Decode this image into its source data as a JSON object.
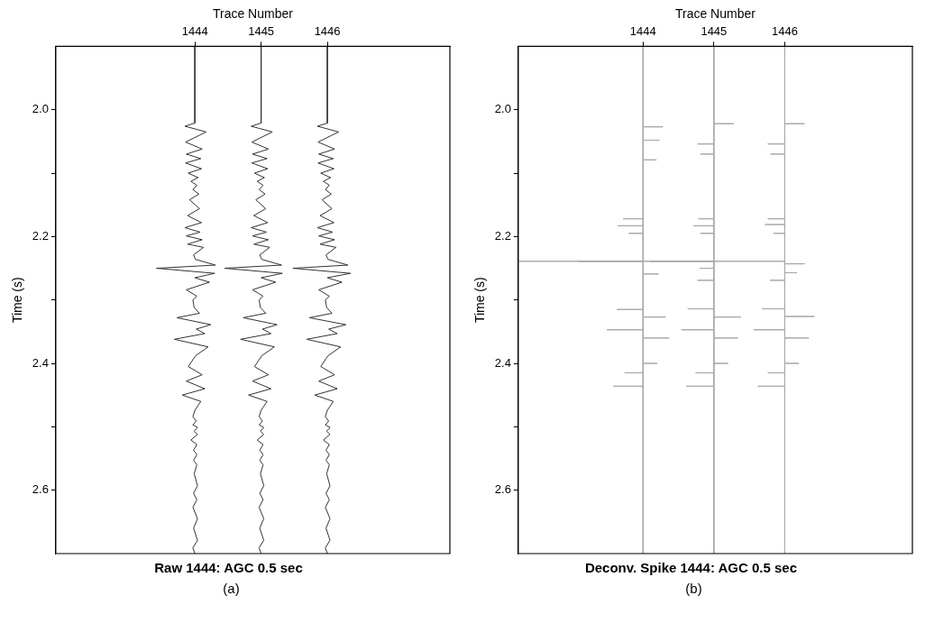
{
  "chart_data": [
    {
      "type": "line",
      "title": "Raw 1444: AGC 0.5 sec",
      "xlabel": "Trace Number",
      "ylabel": "Time (s)",
      "annotations": [
        "(a)"
      ],
      "xlim": [
        1441.9,
        1447.85
      ],
      "xticks": [
        1444,
        1445,
        1446
      ],
      "ylim": [
        2.7,
        1.9
      ],
      "yticks": [
        {
          "value": 2,
          "label": "2.0"
        },
        {
          "value": 2.1,
          "label": null
        },
        2.2,
        {
          "value": 2.3,
          "label": null
        },
        2.4,
        {
          "value": 2.5,
          "label": null
        },
        2.6
      ],
      "series": [
        {
          "color": "#333333",
          "x": [
            1444,
            1444,
            1443.85,
            1444.17,
            1443.86,
            1444.11,
            1443.87,
            1444.09,
            1443.86,
            1444.1,
            1443.9,
            1444.05,
            1443.94,
            1444.03,
            1443.97,
            1444.06,
            1443.92,
            1444.07,
            1443.89,
            1444.1,
            1443.85,
            1444.08,
            1443.87,
            1444.11,
            1443.89,
            1444.13,
            1443.98,
            1444.01,
            1444.31,
            1443.42,
            1444.3,
            1444,
            1444.22,
            1443.87,
            1444.03,
            1443.97,
            1443.99,
            1444.07,
            1443.73,
            1444.24,
            1444.02,
            1444.15,
            1443.69,
            1444.2,
            1444.01,
            1443.9,
            1444.11,
            1443.87,
            1444.15,
            1443.81,
            1444.09,
            1444,
            1443.97,
            1444.02,
            1443.97,
            1444.04,
            1443.99,
            1444.04,
            1443.94,
            1444.03,
            1443.98,
            1444.03,
            1443.98,
            1444.03,
            1443.99,
            1444.04,
            1443.98,
            1444.03,
            1443.97,
            1444.04,
            1443.98,
            1444.04,
            1443.97,
            1444
          ],
          "values": [
            1.9,
            2.021,
            2.026,
            2.035,
            2.051,
            2.062,
            2.07,
            2.077,
            2.084,
            2.093,
            2.1,
            2.107,
            2.113,
            2.119,
            2.126,
            2.133,
            2.142,
            2.156,
            2.167,
            2.178,
            2.186,
            2.193,
            2.199,
            2.205,
            2.212,
            2.217,
            2.229,
            2.236,
            2.245,
            2.25,
            2.258,
            2.265,
            2.272,
            2.284,
            2.294,
            2.3,
            2.312,
            2.321,
            2.328,
            2.339,
            2.346,
            2.353,
            2.362,
            2.374,
            2.388,
            2.405,
            2.418,
            2.428,
            2.44,
            2.45,
            2.46,
            2.474,
            2.484,
            2.491,
            2.497,
            2.501,
            2.507,
            2.512,
            2.521,
            2.528,
            2.537,
            2.544,
            2.553,
            2.56,
            2.574,
            2.593,
            2.605,
            2.615,
            2.627,
            2.645,
            2.66,
            2.679,
            2.691,
            2.7
          ]
        },
        {
          "color": "#333333",
          "x": [
            1445,
            1445,
            1444.85,
            1445.17,
            1444.86,
            1445.11,
            1444.87,
            1445.09,
            1444.86,
            1445.1,
            1444.9,
            1445.05,
            1444.94,
            1445.03,
            1444.97,
            1445.06,
            1444.92,
            1445.07,
            1444.89,
            1445.1,
            1444.85,
            1445.08,
            1444.87,
            1445.11,
            1444.89,
            1445.13,
            1444.98,
            1445.01,
            1445.31,
            1444.45,
            1445.32,
            1445,
            1445.22,
            1444.87,
            1445.03,
            1444.97,
            1444.99,
            1445.07,
            1444.73,
            1445.24,
            1445.02,
            1445.15,
            1444.69,
            1445.2,
            1445.01,
            1444.9,
            1445.11,
            1444.87,
            1445.15,
            1444.81,
            1445.09,
            1445,
            1444.97,
            1445.02,
            1444.97,
            1445.04,
            1444.99,
            1445.04,
            1444.94,
            1445.03,
            1444.98,
            1445.03,
            1444.98,
            1445.03,
            1444.99,
            1445.04,
            1444.98,
            1445.03,
            1444.97,
            1445.04,
            1444.98,
            1445.04,
            1444.97,
            1445
          ],
          "values": [
            1.9,
            2.021,
            2.026,
            2.035,
            2.051,
            2.062,
            2.07,
            2.077,
            2.084,
            2.093,
            2.1,
            2.107,
            2.113,
            2.119,
            2.126,
            2.133,
            2.142,
            2.156,
            2.167,
            2.178,
            2.186,
            2.193,
            2.199,
            2.205,
            2.212,
            2.217,
            2.229,
            2.236,
            2.245,
            2.25,
            2.258,
            2.265,
            2.272,
            2.284,
            2.294,
            2.3,
            2.312,
            2.321,
            2.328,
            2.339,
            2.346,
            2.353,
            2.362,
            2.374,
            2.388,
            2.405,
            2.418,
            2.428,
            2.44,
            2.45,
            2.46,
            2.474,
            2.484,
            2.491,
            2.497,
            2.501,
            2.507,
            2.512,
            2.521,
            2.528,
            2.537,
            2.544,
            2.553,
            2.56,
            2.574,
            2.593,
            2.605,
            2.615,
            2.627,
            2.645,
            2.66,
            2.679,
            2.691,
            2.7
          ]
        },
        {
          "color": "#333333",
          "x": [
            1446,
            1446,
            1445.85,
            1446.17,
            1445.86,
            1446.11,
            1445.87,
            1446.09,
            1445.86,
            1446.1,
            1445.9,
            1446.05,
            1445.94,
            1446.03,
            1445.97,
            1446.06,
            1445.92,
            1446.07,
            1445.89,
            1446.1,
            1445.85,
            1446.08,
            1445.87,
            1446.11,
            1445.89,
            1446.13,
            1445.98,
            1446.01,
            1446.31,
            1445.48,
            1446.35,
            1446,
            1446.22,
            1445.87,
            1446.03,
            1445.97,
            1445.99,
            1446.07,
            1445.73,
            1446.28,
            1446.02,
            1446.15,
            1445.69,
            1446.2,
            1446.01,
            1445.9,
            1446.11,
            1445.87,
            1446.15,
            1445.81,
            1446.09,
            1446,
            1445.97,
            1446.02,
            1445.97,
            1446.04,
            1445.99,
            1446.04,
            1445.94,
            1446.03,
            1445.98,
            1446.03,
            1445.98,
            1446.03,
            1445.99,
            1446.04,
            1445.98,
            1446.03,
            1445.97,
            1446.04,
            1445.98,
            1446.04,
            1445.97,
            1446
          ],
          "values": [
            1.9,
            2.021,
            2.026,
            2.035,
            2.051,
            2.062,
            2.07,
            2.077,
            2.084,
            2.093,
            2.1,
            2.107,
            2.113,
            2.119,
            2.126,
            2.133,
            2.142,
            2.156,
            2.167,
            2.178,
            2.186,
            2.193,
            2.199,
            2.205,
            2.212,
            2.217,
            2.229,
            2.236,
            2.245,
            2.25,
            2.258,
            2.265,
            2.272,
            2.284,
            2.294,
            2.3,
            2.312,
            2.321,
            2.328,
            2.339,
            2.346,
            2.353,
            2.362,
            2.374,
            2.388,
            2.405,
            2.418,
            2.428,
            2.44,
            2.45,
            2.46,
            2.474,
            2.484,
            2.491,
            2.497,
            2.501,
            2.507,
            2.512,
            2.521,
            2.528,
            2.537,
            2.544,
            2.553,
            2.56,
            2.574,
            2.593,
            2.605,
            2.615,
            2.627,
            2.645,
            2.66,
            2.679,
            2.691,
            2.7
          ]
        }
      ]
    },
    {
      "type": "line",
      "title": "Deconv. Spike 1444: AGC 0.5 sec",
      "xlabel": "Trace Number",
      "ylabel": "Time (s)",
      "annotations": [
        "(b)"
      ],
      "xlim": [
        1442.24,
        1447.8
      ],
      "xticks": [
        1444,
        1445,
        1446
      ],
      "ylim": [
        2.7,
        1.9
      ],
      "yticks": [
        {
          "value": 2,
          "label": "2.0"
        },
        {
          "value": 2.1,
          "label": null
        },
        2.2,
        {
          "value": 2.3,
          "label": null
        },
        2.4,
        {
          "value": 2.5,
          "label": null
        },
        2.6
      ],
      "series": [
        {
          "color": "#a6a6a6",
          "x": [
            1444,
            1444,
            1444.28,
            1444,
            1444,
            1444.23,
            1444,
            1444,
            1444.19,
            1444,
            1444,
            1443.72,
            1444,
            1444,
            1443.64,
            1444,
            1444,
            1443.8,
            1444,
            1444,
            1442.25,
            1444,
            1444,
            1444.22,
            1444,
            1444,
            1443.63,
            1444,
            1444,
            1444.32,
            1444,
            1444,
            1443.49,
            1444,
            1444,
            1444.37,
            1444,
            1444,
            1444.2,
            1444,
            1444,
            1443.74,
            1444,
            1444,
            1443.58,
            1444,
            1444
          ],
          "values": [
            1.9,
            2.027,
            2.027,
            2.027,
            2.048,
            2.048,
            2.048,
            2.079,
            2.079,
            2.079,
            2.172,
            2.172,
            2.172,
            2.183,
            2.183,
            2.183,
            2.195,
            2.195,
            2.195,
            2.239,
            2.239,
            2.239,
            2.259,
            2.259,
            2.259,
            2.315,
            2.315,
            2.315,
            2.327,
            2.327,
            2.327,
            2.347,
            2.347,
            2.347,
            2.36,
            2.36,
            2.36,
            2.4,
            2.4,
            2.4,
            2.415,
            2.415,
            2.415,
            2.436,
            2.436,
            2.436,
            2.7
          ]
        },
        {
          "color": "#a6a6a6",
          "x": [
            1445,
            1445,
            1445.28,
            1445,
            1445,
            1444.77,
            1445,
            1445,
            1444.81,
            1445,
            1445,
            1444.78,
            1445,
            1445,
            1444.71,
            1445,
            1445,
            1444.81,
            1445,
            1445,
            1443.1,
            1445,
            1445,
            1444.8,
            1445,
            1445,
            1444.77,
            1445,
            1445,
            1444.63,
            1445,
            1445,
            1445.38,
            1445,
            1445,
            1444.54,
            1445,
            1445,
            1445.34,
            1445,
            1445,
            1445.2,
            1445,
            1445,
            1444.74,
            1445,
            1445,
            1444.61,
            1445,
            1445
          ],
          "values": [
            1.9,
            2.022,
            2.022,
            2.022,
            2.054,
            2.054,
            2.054,
            2.07,
            2.07,
            2.07,
            2.172,
            2.172,
            2.172,
            2.183,
            2.183,
            2.183,
            2.195,
            2.195,
            2.195,
            2.239,
            2.239,
            2.239,
            2.25,
            2.25,
            2.25,
            2.269,
            2.269,
            2.269,
            2.314,
            2.314,
            2.314,
            2.327,
            2.327,
            2.327,
            2.347,
            2.347,
            2.347,
            2.36,
            2.36,
            2.36,
            2.4,
            2.4,
            2.4,
            2.415,
            2.415,
            2.415,
            2.436,
            2.436,
            2.436,
            2.7
          ]
        },
        {
          "color": "#a6a6a6",
          "x": [
            1446,
            1446,
            1446.28,
            1446,
            1446,
            1445.76,
            1446,
            1446,
            1445.8,
            1446,
            1446,
            1445.76,
            1446,
            1446,
            1445.72,
            1446,
            1446,
            1445.84,
            1446,
            1446,
            1444.1,
            1446,
            1446,
            1446.28,
            1446,
            1446,
            1446.17,
            1446,
            1446,
            1445.79,
            1446,
            1446,
            1445.68,
            1446,
            1446,
            1446.42,
            1446,
            1446,
            1445.56,
            1446,
            1446,
            1446.34,
            1446,
            1446,
            1446.2,
            1446,
            1446,
            1445.76,
            1446,
            1446,
            1445.62,
            1446,
            1446
          ],
          "values": [
            1.9,
            2.022,
            2.022,
            2.022,
            2.054,
            2.054,
            2.054,
            2.07,
            2.07,
            2.07,
            2.172,
            2.172,
            2.172,
            2.181,
            2.181,
            2.181,
            2.195,
            2.195,
            2.195,
            2.239,
            2.239,
            2.239,
            2.243,
            2.243,
            2.243,
            2.257,
            2.257,
            2.257,
            2.269,
            2.269,
            2.269,
            2.314,
            2.314,
            2.314,
            2.326,
            2.326,
            2.326,
            2.347,
            2.347,
            2.347,
            2.36,
            2.36,
            2.36,
            2.4,
            2.4,
            2.4,
            2.415,
            2.415,
            2.415,
            2.436,
            2.436,
            2.436,
            2.7
          ]
        }
      ]
    }
  ]
}
